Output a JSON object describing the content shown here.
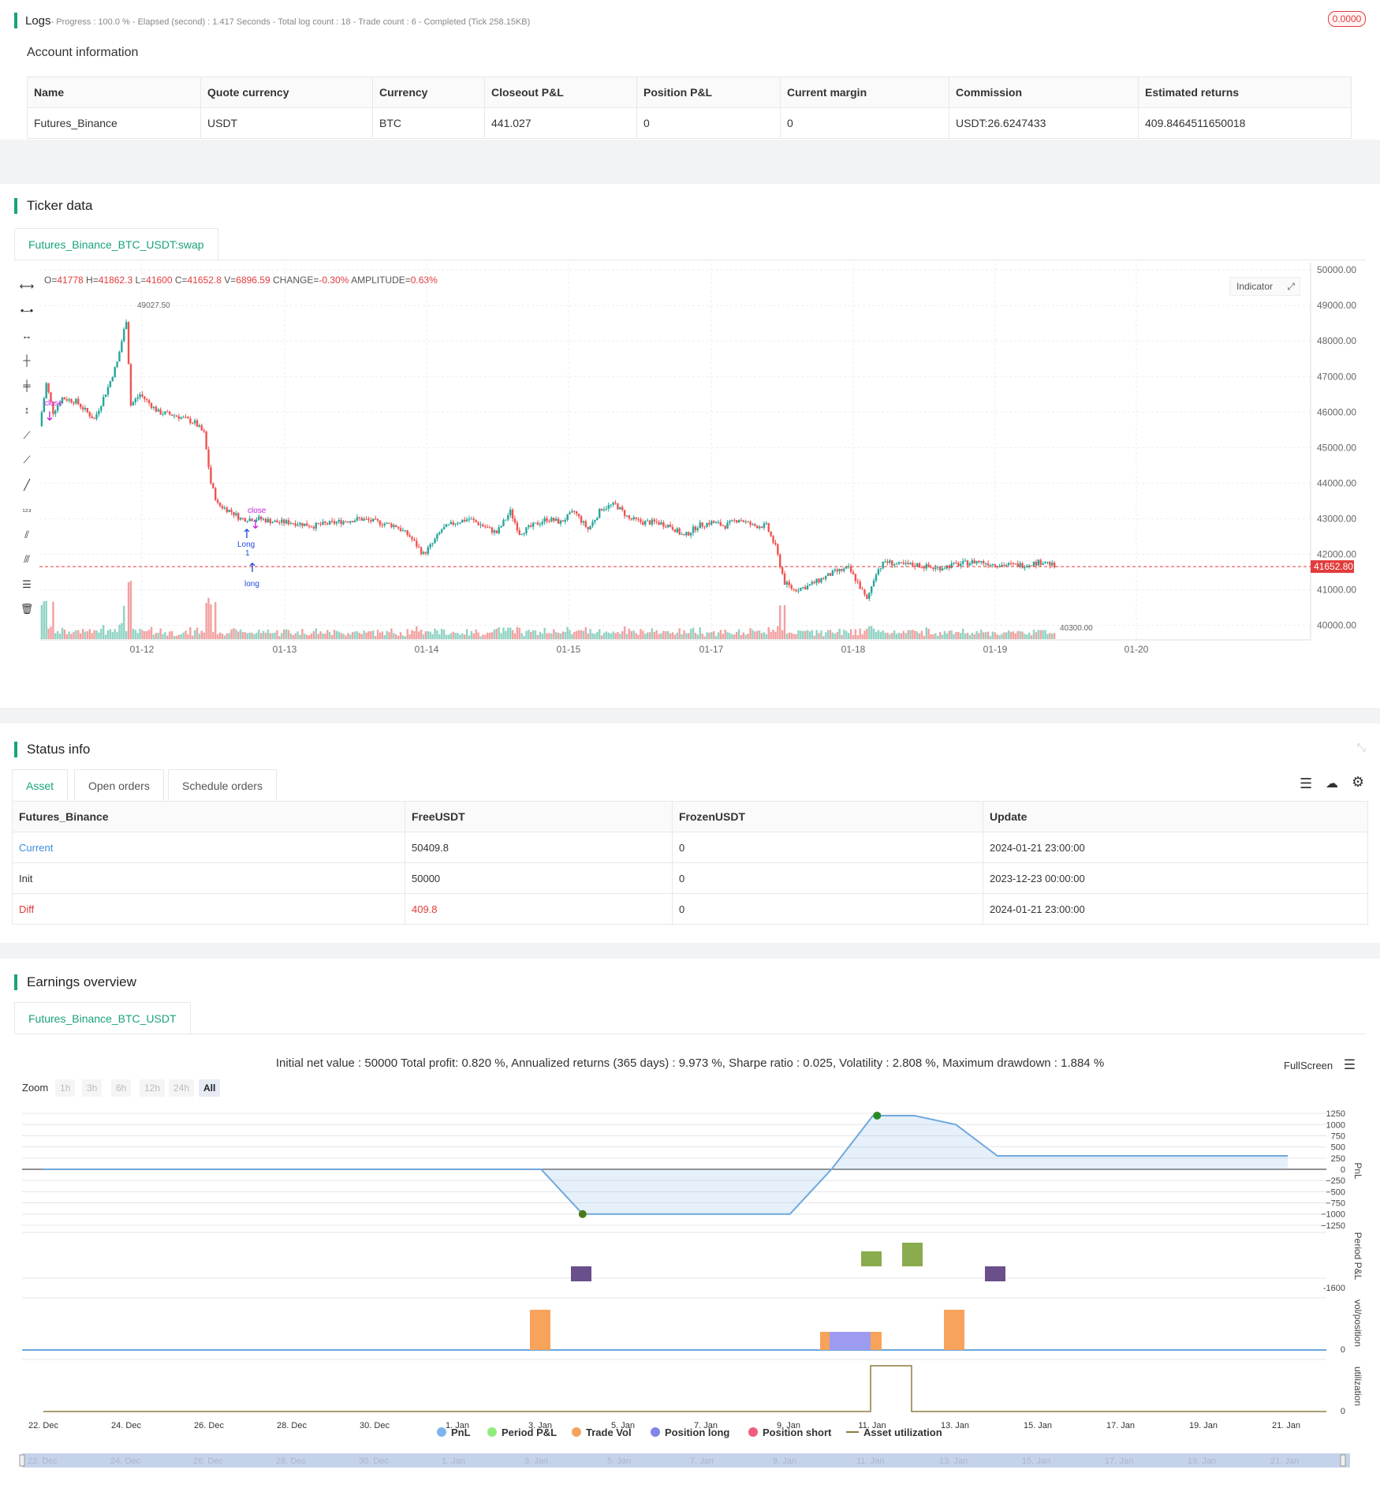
{
  "logs": {
    "title": "Logs",
    "progress": "- Progress : 100.0 % - Elapsed (second) : 1.417  Seconds - Total log count : 18 - Trade count : 6 - Completed (Tick 258.15KB)",
    "badge": "0.0000"
  },
  "account": {
    "title": "Account information",
    "headers": [
      "Name",
      "Quote currency",
      "Currency",
      "Closeout P&L",
      "Position P&L",
      "Current margin",
      "Commission",
      "Estimated returns"
    ],
    "row": [
      "Futures_Binance",
      "USDT",
      "BTC",
      "441.027",
      "0",
      "0",
      "USDT:26.6247433",
      "409.8464511650018"
    ]
  },
  "ticker": {
    "title": "Ticker data",
    "tab": "Futures_Binance_BTC_USDT:swap",
    "ohlc_prefix": "O=",
    "o": "41778",
    "h_label": " H=",
    "h": "41862.3",
    "l_label": " L=",
    "l": "41600",
    "c_label": " C=",
    "c": "41652.8",
    "v_label": " V=",
    "v": "6896.59",
    "change_label": " CHANGE=",
    "change": "-0.30%",
    "amp_label": " AMPLITUDE=",
    "amp": "0.63%",
    "indicator_btn": "Indicator",
    "price_ticks": [
      "50000.00",
      "49000.00",
      "48000.00",
      "47000.00",
      "46000.00",
      "45000.00",
      "44000.00",
      "43000.00",
      "42000.00",
      "41000.00",
      "40000.00"
    ],
    "date_ticks": [
      "01-12",
      "01-13",
      "01-14",
      "01-15",
      "01-17",
      "01-18",
      "01-19",
      "01-20"
    ],
    "last_price": "41652.80",
    "high_marker": "49027.50",
    "low_marker": "40300.00",
    "marks": {
      "close1": "close",
      "close2": "close",
      "long_label": "Long",
      "long_qty": "1",
      "long2": "long"
    }
  },
  "status": {
    "title": "Status info",
    "tabs": [
      "Asset",
      "Open orders",
      "Schedule orders"
    ],
    "headers": [
      "Futures_Binance",
      "FreeUSDT",
      "FrozenUSDT",
      "Update"
    ],
    "rows": [
      [
        "Current",
        "50409.8",
        "0",
        "2024-01-21 23:00:00"
      ],
      [
        "Init",
        "50000",
        "0",
        "2023-12-23 00:00:00"
      ],
      [
        "Diff",
        "409.8",
        "0",
        "2024-01-21 23:00:00"
      ]
    ],
    "colors": {
      "current": "#3c8dde",
      "diff": "#e23b3b"
    }
  },
  "earnings": {
    "title": "Earnings overview",
    "tab": "Futures_Binance_BTC_USDT",
    "summary": "Initial net value : 50000 Total profit: 0.820 %, Annualized returns (365 days) : 9.973 %, Sharpe ratio : 0.025, Volatility : 2.808 %, Maximum drawdown : 1.884 %",
    "fullscreen": "FullScreen",
    "zoom_label": "Zoom",
    "zoom_buttons": [
      "1h",
      "3h",
      "6h",
      "12h",
      "24h",
      "All"
    ],
    "pnl_ticks": [
      "1250",
      "1000",
      "750",
      "500",
      "250",
      "0",
      "−250",
      "−500",
      "−750",
      "−1000",
      "−1250"
    ],
    "axis_titles": [
      "PnL",
      "Period P&L",
      "vol/position",
      "utilization"
    ],
    "period_tick": "-1600",
    "zero": "0",
    "date_ticks": [
      "22. Dec",
      "24. Dec",
      "26. Dec",
      "28. Dec",
      "30. Dec",
      "1. Jan",
      "3. Jan",
      "5. Jan",
      "7. Jan",
      "9. Jan",
      "11. Jan",
      "13. Jan",
      "15. Jan",
      "17. Jan",
      "19. Jan",
      "21. Jan"
    ],
    "legend": [
      "PnL",
      "Period P&L",
      "Trade Vol",
      "Position long",
      "Position short",
      "Asset utilization"
    ],
    "legend_colors": [
      "#7cb5ec",
      "#90ed7d",
      "#f7a35c",
      "#8085e9",
      "#f15c80",
      "#8d7b3f"
    ]
  }
}
